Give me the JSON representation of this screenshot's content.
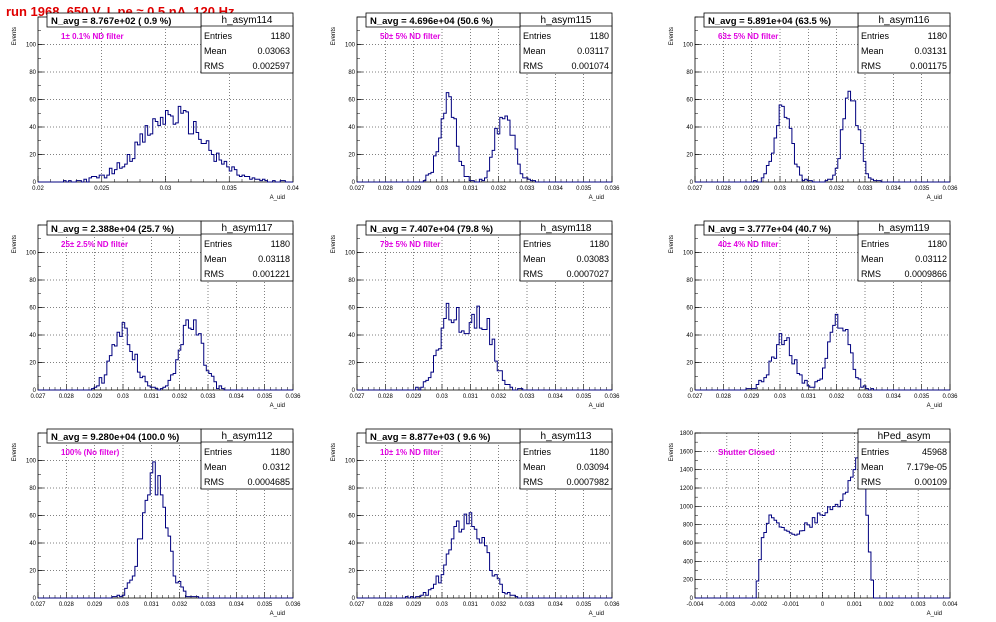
{
  "page_title": "run 1968,   650 V, I_pe ≈ 0.5 nA, 120 Hz",
  "colors": {
    "hist_line": "#00007f",
    "nav_text": "#000000",
    "annotation": "#e000e0",
    "title_red": "#e00000",
    "grid": "#000000"
  },
  "stat_labels": {
    "entries": "Entries",
    "mean": "Mean",
    "rms": "RMS"
  },
  "chart_data": [
    {
      "type": "histogram",
      "name": "h_asym114",
      "n_avg_label": "N_avg = 8.767e+02 ( 0.9 %)",
      "annotation": "1± 0.1% ND filter",
      "stats": {
        "entries": "1180",
        "mean": "0.03063",
        "rms": "0.002597"
      },
      "ylabel": "Events",
      "xlabel": "A_uid",
      "xlim": [
        0.02,
        0.04
      ],
      "ylim": [
        0,
        120
      ],
      "xticks": [
        0.02,
        0.025,
        0.03,
        0.035,
        0.04
      ],
      "xtick_labels": [
        "0.02",
        "0.025",
        "0.03",
        "0.035",
        "0.04"
      ],
      "yticks": [
        0,
        20,
        40,
        60,
        80,
        100
      ],
      "yminor_step": 10,
      "peaks": [
        {
          "mean": 0.0306,
          "sigma": 0.0025,
          "height": 48
        }
      ]
    },
    {
      "type": "histogram",
      "name": "h_asym115",
      "n_avg_label": "N_avg = 4.696e+04 (50.6 %)",
      "annotation": "50± 5% ND filter",
      "stats": {
        "entries": "1180",
        "mean": "0.03117",
        "rms": "0.001074"
      },
      "ylabel": "Events",
      "xlabel": "A_uid",
      "xlim": [
        0.027,
        0.036
      ],
      "ylim": [
        0,
        120
      ],
      "xticks": [
        0.027,
        0.028,
        0.029,
        0.03,
        0.031,
        0.032,
        0.033,
        0.034,
        0.035,
        0.036
      ],
      "xtick_labels": [
        "0.027",
        "0.028",
        "0.029",
        "0.03",
        "0.031",
        "0.032",
        "0.033",
        "0.034",
        "0.035",
        "0.036"
      ],
      "yticks": [
        0,
        20,
        40,
        60,
        80,
        100
      ],
      "yminor_step": 10,
      "peaks": [
        {
          "mean": 0.0302,
          "sigma": 0.0003,
          "height": 58
        },
        {
          "mean": 0.0322,
          "sigma": 0.0003,
          "height": 53
        }
      ]
    },
    {
      "type": "histogram",
      "name": "h_asym116",
      "n_avg_label": "N_avg = 5.891e+04 (63.5 %)",
      "annotation": "63± 5% ND filter",
      "stats": {
        "entries": "1180",
        "mean": "0.03131",
        "rms": "0.001175"
      },
      "ylabel": "Events",
      "xlabel": "A_uid",
      "xlim": [
        0.027,
        0.036
      ],
      "ylim": [
        0,
        120
      ],
      "xticks": [
        0.027,
        0.028,
        0.029,
        0.03,
        0.031,
        0.032,
        0.033,
        0.034,
        0.035,
        0.036
      ],
      "xtick_labels": [
        "0.027",
        "0.028",
        "0.029",
        "0.03",
        "0.031",
        "0.032",
        "0.033",
        "0.034",
        "0.035",
        "0.036"
      ],
      "yticks": [
        0,
        20,
        40,
        60,
        80,
        100
      ],
      "yminor_step": 10,
      "peaks": [
        {
          "mean": 0.0301,
          "sigma": 0.00028,
          "height": 57
        },
        {
          "mean": 0.0325,
          "sigma": 0.00028,
          "height": 66
        }
      ]
    },
    {
      "type": "histogram",
      "name": "h_asym117",
      "n_avg_label": "N_avg = 2.388e+04 (25.7 %)",
      "annotation": "25± 2.5% ND filter",
      "stats": {
        "entries": "1180",
        "mean": "0.03118",
        "rms": "0.001221"
      },
      "ylabel": "Events",
      "xlabel": "A_uid",
      "xlim": [
        0.027,
        0.036
      ],
      "ylim": [
        0,
        120
      ],
      "xticks": [
        0.027,
        0.028,
        0.029,
        0.03,
        0.031,
        0.032,
        0.033,
        0.034,
        0.035,
        0.036
      ],
      "xtick_labels": [
        "0.027",
        "0.028",
        "0.029",
        "0.03",
        "0.031",
        "0.032",
        "0.033",
        "0.034",
        "0.035",
        "0.036"
      ],
      "yticks": [
        0,
        20,
        40,
        60,
        80,
        100
      ],
      "yminor_step": 10,
      "peaks": [
        {
          "mean": 0.03,
          "sigma": 0.0004,
          "height": 42
        },
        {
          "mean": 0.0324,
          "sigma": 0.0004,
          "height": 47
        }
      ]
    },
    {
      "type": "histogram",
      "name": "h_asym118",
      "n_avg_label": "N_avg = 7.407e+04 (79.8 %)",
      "annotation": "79± 5% ND filter",
      "stats": {
        "entries": "1180",
        "mean": "0.03083",
        "rms": "0.0007027"
      },
      "ylabel": "Events",
      "xlabel": "A_uid",
      "xlim": [
        0.027,
        0.036
      ],
      "ylim": [
        0,
        120
      ],
      "xticks": [
        0.027,
        0.028,
        0.029,
        0.03,
        0.031,
        0.032,
        0.033,
        0.034,
        0.035,
        0.036
      ],
      "xtick_labels": [
        "0.027",
        "0.028",
        "0.029",
        "0.03",
        "0.031",
        "0.032",
        "0.033",
        "0.034",
        "0.035",
        "0.036"
      ],
      "yticks": [
        0,
        20,
        40,
        60,
        80,
        100
      ],
      "yminor_step": 10,
      "peaks": [
        {
          "mean": 0.0303,
          "sigma": 0.0004,
          "height": 57
        },
        {
          "mean": 0.0314,
          "sigma": 0.0004,
          "height": 52
        }
      ]
    },
    {
      "type": "histogram",
      "name": "h_asym119",
      "n_avg_label": "N_avg = 3.777e+04 (40.7 %)",
      "annotation": "40± 4% ND filter",
      "stats": {
        "entries": "1180",
        "mean": "0.03112",
        "rms": "0.0009866"
      },
      "ylabel": "Events",
      "xlabel": "A_uid",
      "xlim": [
        0.027,
        0.036
      ],
      "ylim": [
        0,
        120
      ],
      "xticks": [
        0.027,
        0.028,
        0.029,
        0.03,
        0.031,
        0.032,
        0.033,
        0.034,
        0.035,
        0.036
      ],
      "xtick_labels": [
        "0.027",
        "0.028",
        "0.029",
        "0.03",
        "0.031",
        "0.032",
        "0.033",
        "0.034",
        "0.035",
        "0.036"
      ],
      "yticks": [
        0,
        20,
        40,
        60,
        80,
        100
      ],
      "yminor_step": 10,
      "peaks": [
        {
          "mean": 0.0301,
          "sigma": 0.0004,
          "height": 35
        },
        {
          "mean": 0.0321,
          "sigma": 0.00035,
          "height": 52
        }
      ]
    },
    {
      "type": "histogram",
      "name": "h_asym112",
      "n_avg_label": "N_avg = 9.280e+04 (100.0 %)",
      "annotation": "100% (No filter)",
      "stats": {
        "entries": "1180",
        "mean": "0.0312",
        "rms": "0.0004685"
      },
      "ylabel": "Events",
      "xlabel": "A_uid",
      "xlim": [
        0.027,
        0.036
      ],
      "ylim": [
        0,
        120
      ],
      "xticks": [
        0.027,
        0.028,
        0.029,
        0.03,
        0.031,
        0.032,
        0.033,
        0.034,
        0.035,
        0.036
      ],
      "xtick_labels": [
        "0.027",
        "0.028",
        "0.029",
        "0.03",
        "0.031",
        "0.032",
        "0.033",
        "0.034",
        "0.035",
        "0.036"
      ],
      "yticks": [
        0,
        20,
        40,
        60,
        80,
        100
      ],
      "yminor_step": 10,
      "peaks": [
        {
          "mean": 0.0311,
          "sigma": 0.00042,
          "height": 88
        }
      ]
    },
    {
      "type": "histogram",
      "name": "h_asym113",
      "n_avg_label": "N_avg = 8.877e+03 ( 9.6 %)",
      "annotation": "10± 1% ND filter",
      "stats": {
        "entries": "1180",
        "mean": "0.03094",
        "rms": "0.0007982"
      },
      "ylabel": "Events",
      "xlabel": "A_uid",
      "xlim": [
        0.027,
        0.036
      ],
      "ylim": [
        0,
        120
      ],
      "xticks": [
        0.027,
        0.028,
        0.029,
        0.03,
        0.031,
        0.032,
        0.033,
        0.034,
        0.035,
        0.036
      ],
      "xtick_labels": [
        "0.027",
        "0.028",
        "0.029",
        "0.03",
        "0.031",
        "0.032",
        "0.033",
        "0.034",
        "0.035",
        "0.036"
      ],
      "yticks": [
        0,
        20,
        40,
        60,
        80,
        100
      ],
      "yminor_step": 10,
      "peaks": [
        {
          "mean": 0.0309,
          "sigma": 0.0006,
          "height": 60
        }
      ]
    },
    {
      "type": "histogram",
      "name": "hPed_asym",
      "n_avg_label": "",
      "annotation": "Shutter Closed",
      "stats": {
        "entries": "45968",
        "mean": "7.179e-05",
        "rms": "0.00109"
      },
      "ylabel": "Events",
      "xlabel": "A_uid",
      "xlim": [
        -0.004,
        0.004
      ],
      "ylim": [
        0,
        1800
      ],
      "xticks": [
        -0.004,
        -0.003,
        -0.002,
        -0.001,
        0,
        0.001,
        0.002,
        0.003,
        0.004
      ],
      "xtick_labels": [
        "-0.004",
        "-0.003",
        "-0.002",
        "-0.001",
        "0",
        "0.001",
        "0.002",
        "0.003",
        "0.004"
      ],
      "yticks": [
        0,
        200,
        400,
        600,
        800,
        1000,
        1200,
        1400,
        1600,
        1800
      ],
      "yminor_step": 100,
      "range": [
        -0.0021,
        0.0016
      ],
      "shape_points": [
        [
          -0.0021,
          0
        ],
        [
          -0.0019,
          600
        ],
        [
          -0.0016,
          900
        ],
        [
          -0.0012,
          780
        ],
        [
          -0.0008,
          720
        ],
        [
          -0.0004,
          800
        ],
        [
          0.0,
          920
        ],
        [
          0.0005,
          1000
        ],
        [
          0.0009,
          1300
        ],
        [
          0.0012,
          1700
        ],
        [
          0.0014,
          900
        ],
        [
          0.0016,
          0
        ]
      ]
    }
  ]
}
